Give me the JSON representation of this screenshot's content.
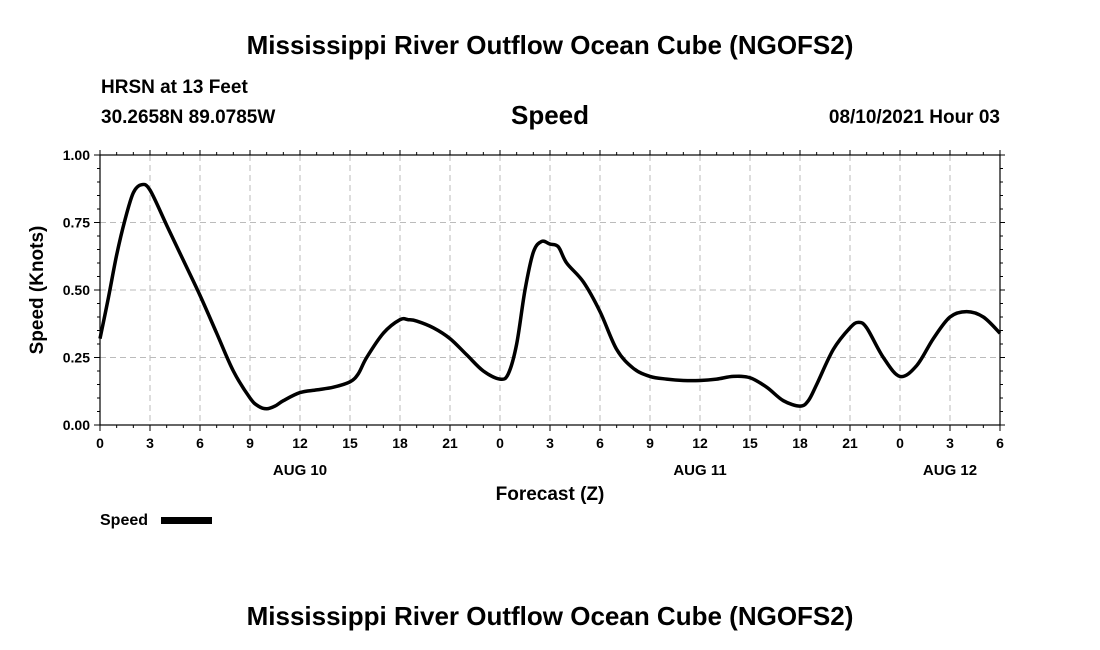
{
  "title": "Mississippi River Outflow Ocean Cube (NGOFS2)",
  "footer_title": "Mississippi River Outflow Ocean Cube (NGOFS2)",
  "station": "HRSN at 13 Feet",
  "location": "30.2658N  89.0785W",
  "variable": "Speed",
  "timestamp": "08/10/2021 Hour 03",
  "legend": {
    "label": "Speed",
    "color": "#000000"
  },
  "chart_data": {
    "type": "line",
    "title": "Speed",
    "xlabel": "Forecast (Z)",
    "ylabel": "Speed (Knots)",
    "xlim": [
      0,
      54
    ],
    "ylim": [
      0,
      1.0
    ],
    "grid": true,
    "legend_position": "bottom-left",
    "x_tick_values": [
      0,
      3,
      6,
      9,
      12,
      15,
      18,
      21,
      24,
      27,
      30,
      33,
      36,
      39,
      42,
      45,
      48,
      51,
      54
    ],
    "x_tick_labels": [
      "0",
      "3",
      "6",
      "9",
      "12",
      "15",
      "18",
      "21",
      "0",
      "3",
      "6",
      "9",
      "12",
      "15",
      "18",
      "21",
      "0",
      "3",
      "6"
    ],
    "date_labels": [
      {
        "x": 12,
        "label": "AUG 10"
      },
      {
        "x": 36,
        "label": "AUG 11"
      },
      {
        "x": 51,
        "label": "AUG 12"
      }
    ],
    "y_tick_values": [
      0,
      0.25,
      0.5,
      0.75,
      1.0
    ],
    "y_tick_labels": [
      "0.00",
      "0.25",
      "0.50",
      "0.75",
      "1.00"
    ],
    "series": [
      {
        "name": "Speed",
        "color": "#000000",
        "x": [
          0,
          0.5,
          1,
          1.5,
          2,
          2.5,
          3,
          4,
          5,
          6,
          7,
          8,
          9,
          9.5,
          10,
          10.5,
          11,
          12,
          13,
          14,
          15,
          15.5,
          16,
          17,
          18,
          18.5,
          19,
          20,
          21,
          22,
          23,
          24,
          24.5,
          25,
          25.5,
          26,
          26.5,
          27,
          27.5,
          28,
          29,
          30,
          31,
          32,
          33,
          34,
          35,
          36,
          37,
          38,
          39,
          40,
          41,
          42,
          42.5,
          43,
          44,
          45,
          45.5,
          46,
          47,
          48,
          49,
          50,
          51,
          52,
          53,
          54
        ],
        "y": [
          0.32,
          0.47,
          0.63,
          0.76,
          0.86,
          0.89,
          0.87,
          0.74,
          0.61,
          0.48,
          0.34,
          0.2,
          0.1,
          0.07,
          0.06,
          0.07,
          0.09,
          0.12,
          0.13,
          0.14,
          0.16,
          0.19,
          0.25,
          0.34,
          0.39,
          0.39,
          0.385,
          0.36,
          0.32,
          0.26,
          0.2,
          0.17,
          0.19,
          0.3,
          0.5,
          0.64,
          0.68,
          0.67,
          0.66,
          0.6,
          0.53,
          0.42,
          0.28,
          0.21,
          0.18,
          0.17,
          0.165,
          0.165,
          0.17,
          0.18,
          0.175,
          0.14,
          0.09,
          0.07,
          0.09,
          0.15,
          0.28,
          0.36,
          0.38,
          0.36,
          0.25,
          0.18,
          0.22,
          0.32,
          0.4,
          0.42,
          0.4,
          0.34
        ]
      }
    ]
  }
}
